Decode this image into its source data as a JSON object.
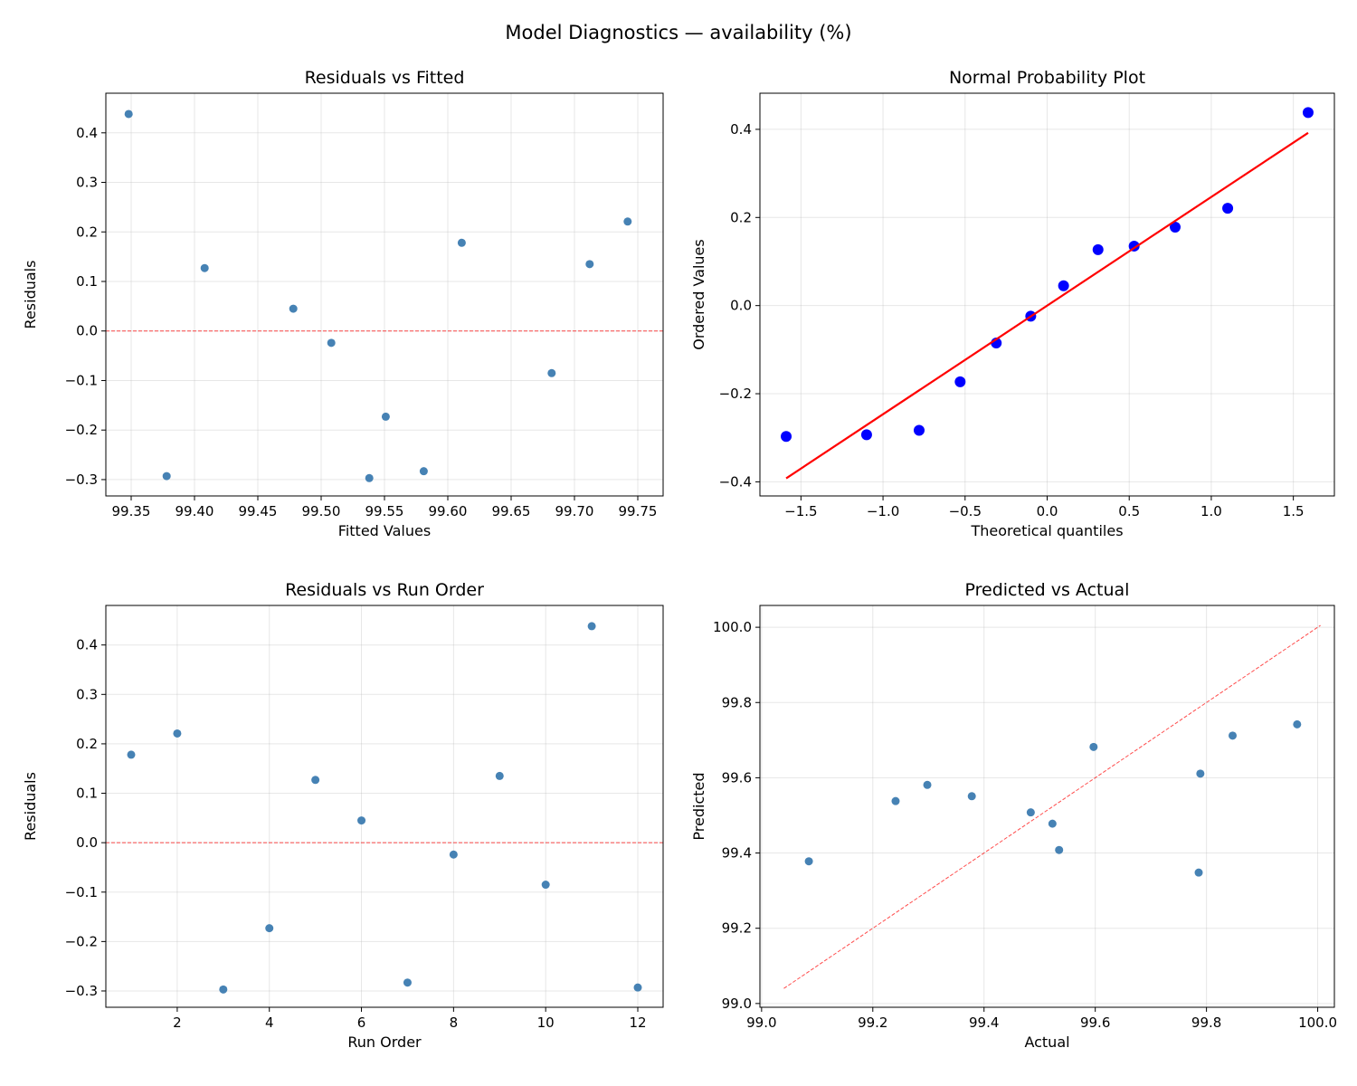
{
  "suptitle": "Model Diagnostics — availability (%)",
  "colors": {
    "points": "#4682b4",
    "qq_points": "#0000ff",
    "qq_line": "#ff0000",
    "ref_line": "#ff0000"
  },
  "chart_data": [
    {
      "type": "scatter",
      "title": "Residuals vs Fitted",
      "xlabel": "Fitted Values",
      "ylabel": "Residuals",
      "xlim": [
        99.33,
        99.77
      ],
      "ylim": [
        -0.333,
        0.48
      ],
      "grid": true,
      "xticks": [
        99.35,
        99.4,
        99.45,
        99.5,
        99.55,
        99.6,
        99.65,
        99.7,
        99.75
      ],
      "xtick_labels": [
        "99.35",
        "99.40",
        "99.45",
        "99.50",
        "99.55",
        "99.60",
        "99.65",
        "99.70",
        "99.75"
      ],
      "yticks": [
        -0.3,
        -0.2,
        -0.1,
        0.0,
        0.1,
        0.2,
        0.3,
        0.4
      ],
      "ytick_labels": [
        "−0.3",
        "−0.2",
        "−0.1",
        "0.0",
        "0.1",
        "0.2",
        "0.3",
        "0.4"
      ],
      "x": [
        99.611,
        99.742,
        99.538,
        99.551,
        99.408,
        99.478,
        99.581,
        99.508,
        99.712,
        99.682,
        99.348,
        99.378
      ],
      "y": [
        0.178,
        0.221,
        -0.297,
        -0.173,
        0.127,
        0.045,
        -0.283,
        -0.024,
        0.135,
        -0.085,
        0.438,
        -0.293
      ],
      "hline": 0
    },
    {
      "type": "scatter",
      "title": "Normal Probability Plot",
      "xlabel": "Theoretical quantiles",
      "ylabel": "Ordered Values",
      "xlim": [
        -1.75,
        1.75
      ],
      "ylim": [
        -0.432,
        0.482
      ],
      "grid": true,
      "xticks": [
        -1.5,
        -1.0,
        -0.5,
        0.0,
        0.5,
        1.0,
        1.5
      ],
      "xtick_labels": [
        "−1.5",
        "−1.0",
        "−0.5",
        "0.0",
        "0.5",
        "1.0",
        "1.5"
      ],
      "yticks": [
        -0.4,
        -0.2,
        0.0,
        0.2,
        0.4
      ],
      "ytick_labels": [
        "−0.4",
        "−0.2",
        "0.0",
        "0.2",
        "0.4"
      ],
      "x": [
        -1.59,
        -1.1,
        -0.78,
        -0.53,
        -0.31,
        -0.1,
        0.1,
        0.31,
        0.53,
        0.78,
        1.1,
        1.59
      ],
      "y": [
        -0.297,
        -0.293,
        -0.283,
        -0.173,
        -0.085,
        -0.024,
        0.045,
        0.127,
        0.135,
        0.178,
        0.221,
        0.438
      ],
      "fit_line": {
        "x": [
          -1.59,
          1.59
        ],
        "y": [
          -0.392,
          0.392
        ]
      }
    },
    {
      "type": "scatter",
      "title": "Residuals vs Run Order",
      "xlabel": "Run Order",
      "ylabel": "Residuals",
      "xlim": [
        0.45,
        12.55
      ],
      "ylim": [
        -0.333,
        0.48
      ],
      "grid": true,
      "xticks": [
        2,
        4,
        6,
        8,
        10,
        12
      ],
      "xtick_labels": [
        "2",
        "4",
        "6",
        "8",
        "10",
        "12"
      ],
      "yticks": [
        -0.3,
        -0.2,
        -0.1,
        0.0,
        0.1,
        0.2,
        0.3,
        0.4
      ],
      "ytick_labels": [
        "−0.3",
        "−0.2",
        "−0.1",
        "0.0",
        "0.1",
        "0.2",
        "0.3",
        "0.4"
      ],
      "x": [
        1,
        2,
        3,
        4,
        5,
        6,
        7,
        8,
        9,
        10,
        11,
        12
      ],
      "y": [
        0.178,
        0.221,
        -0.297,
        -0.173,
        0.127,
        0.045,
        -0.283,
        -0.024,
        0.135,
        -0.085,
        0.438,
        -0.293
      ],
      "hline": 0
    },
    {
      "type": "scatter",
      "title": "Predicted vs Actual",
      "xlabel": "Actual",
      "ylabel": "Predicted",
      "xlim": [
        98.997,
        100.03
      ],
      "ylim": [
        98.99,
        100.058
      ],
      "grid": true,
      "xticks": [
        99.0,
        99.2,
        99.4,
        99.6,
        99.8,
        100.0
      ],
      "xtick_labels": [
        "99.0",
        "99.2",
        "99.4",
        "99.6",
        "99.8",
        "100.0"
      ],
      "yticks": [
        99.0,
        99.2,
        99.4,
        99.6,
        99.8,
        100.0
      ],
      "ytick_labels": [
        "99.0",
        "99.2",
        "99.4",
        "99.6",
        "99.8",
        "100.0"
      ],
      "x": [
        99.789,
        99.963,
        99.241,
        99.378,
        99.535,
        99.523,
        99.298,
        99.484,
        99.847,
        99.597,
        99.786,
        99.085
      ],
      "y": [
        99.611,
        99.742,
        99.538,
        99.551,
        99.408,
        99.478,
        99.581,
        99.508,
        99.712,
        99.682,
        99.348,
        99.378
      ],
      "ref_line": {
        "x": [
          99.04,
          100.005
        ],
        "y": [
          99.04,
          100.005
        ]
      }
    }
  ]
}
